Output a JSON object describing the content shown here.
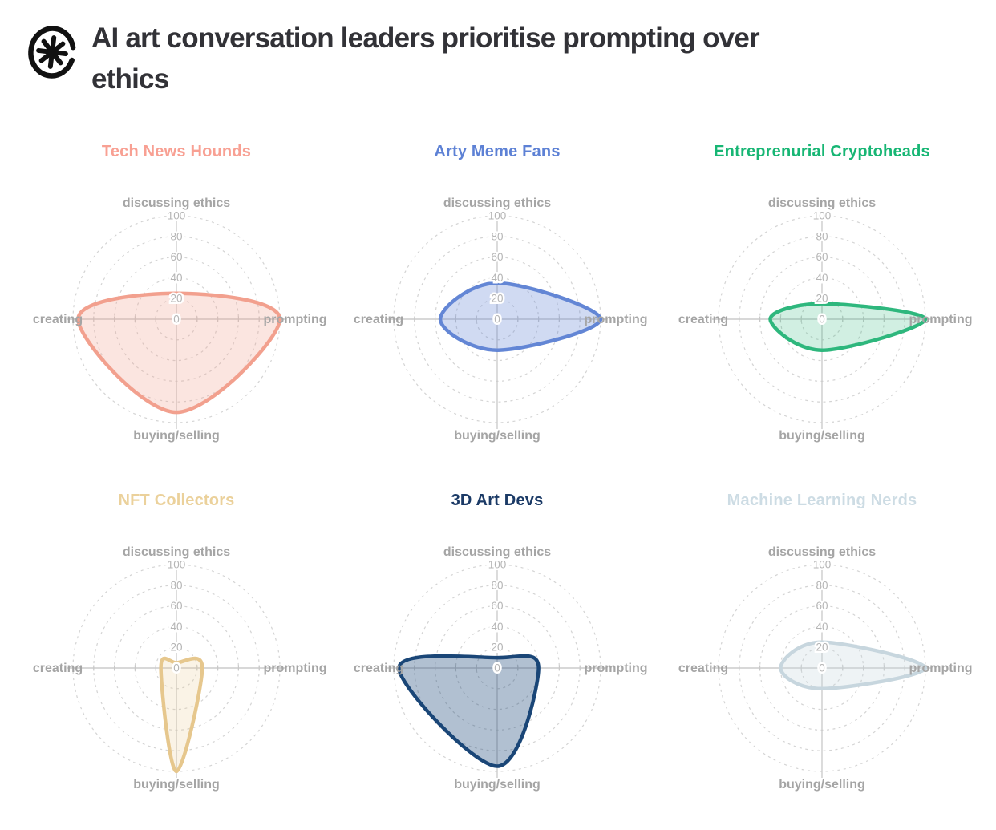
{
  "header": {
    "title": "AI art conversation leaders prioritise prompting over ethics",
    "title_lines": [
      "AI art conversation leaders prioritise prompting over",
      "ethics"
    ],
    "logo_icon": "asterisk-scribble-logo",
    "title_color": "#323237"
  },
  "axis_labels": {
    "top": "discussing ethics",
    "right": "prompting",
    "bottom": "buying/selling",
    "left": "creating"
  },
  "radial_ticks": [
    0,
    20,
    40,
    60,
    80,
    100
  ],
  "scale_max": 100,
  "grid": {
    "ring_color": "#d4d4d4",
    "axis_color": "#cccccc",
    "tick_mark_color": "#c9c9c9",
    "tick_label_color": "#b5b5b5",
    "axis_label_color": "#a5a5a5",
    "legend_position": "none",
    "grid_on": true
  },
  "chart_data": [
    {
      "type": "radar",
      "title": "Tech News Hounds",
      "title_color": "#f8a093",
      "stroke_color": "#f2a08e",
      "fill_color": "rgba(242,160,142,0.28)",
      "categories": [
        "discussing ethics",
        "prompting",
        "buying/selling",
        "creating"
      ],
      "values": {
        "discussing ethics": 25,
        "prompting": 100,
        "buying/selling": 90,
        "creating": 95
      }
    },
    {
      "type": "radar",
      "title": "Arty Meme Fans",
      "title_color": "#5d81d5",
      "stroke_color": "#6386d5",
      "fill_color": "rgba(99,134,213,0.30)",
      "categories": [
        "discussing ethics",
        "prompting",
        "buying/selling",
        "creating"
      ],
      "values": {
        "discussing ethics": 35,
        "prompting": 100,
        "buying/selling": 30,
        "creating": 55
      }
    },
    {
      "type": "radar",
      "title": "Entreprenurial Cryptoheads",
      "title_color": "#17b674",
      "stroke_color": "#2eb77d",
      "fill_color": "rgba(46,183,125,0.22)",
      "categories": [
        "discussing ethics",
        "prompting",
        "buying/selling",
        "creating"
      ],
      "values": {
        "discussing ethics": 15,
        "prompting": 100,
        "buying/selling": 30,
        "creating": 50
      }
    },
    {
      "type": "radar",
      "title": "NFT Collectors",
      "title_color": "#ebd19b",
      "stroke_color": "#e6c78d",
      "fill_color": "rgba(230,199,141,0.22)",
      "categories": [
        "discussing ethics",
        "prompting",
        "buying/selling",
        "creating"
      ],
      "values": {
        "discussing ethics": 5,
        "prompting": 25,
        "buying/selling": 100,
        "creating": 15
      }
    },
    {
      "type": "radar",
      "title": "3D Art Devs",
      "title_color": "#1b3a66",
      "stroke_color": "#1a4677",
      "fill_color": "rgba(26,70,119,0.34)",
      "categories": [
        "discussing ethics",
        "prompting",
        "buying/selling",
        "creating"
      ],
      "values": {
        "discussing ethics": 10,
        "prompting": 40,
        "buying/selling": 95,
        "creating": 95
      }
    },
    {
      "type": "radar",
      "title": "Machine Learning Nerds",
      "title_color": "#cddce4",
      "stroke_color": "#c7d6de",
      "fill_color": "rgba(199,214,222,0.30)",
      "categories": [
        "discussing ethics",
        "prompting",
        "buying/selling",
        "creating"
      ],
      "values": {
        "discussing ethics": 25,
        "prompting": 100,
        "buying/selling": 20,
        "creating": 40
      }
    }
  ]
}
